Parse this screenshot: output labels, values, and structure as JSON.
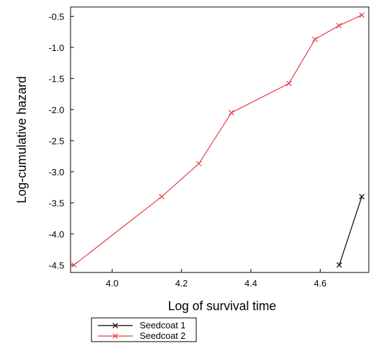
{
  "chart_data": {
    "type": "line",
    "title": "",
    "xlabel": "Log of survival time",
    "ylabel": "Log-cumulative hazard",
    "xlim": [
      3.88,
      4.74
    ],
    "ylim": [
      -4.62,
      -0.35
    ],
    "x_ticks": [
      4.0,
      4.2,
      4.4,
      4.6
    ],
    "x_tick_labels": [
      "4.0",
      "4.2",
      "4.4",
      "4.6"
    ],
    "y_ticks": [
      -0.5,
      -1.0,
      -1.5,
      -2.0,
      -2.5,
      -3.0,
      -3.5,
      -4.0,
      -4.5
    ],
    "y_tick_labels": [
      "-0.5",
      "-1.0",
      "-1.5",
      "-2.0",
      "-2.5",
      "-3.0",
      "-3.5",
      "-4.0",
      "-4.5"
    ],
    "grid": false,
    "legend_position": "bottom-left, below plot",
    "series": [
      {
        "name": "Seedcoat 1",
        "color": "#000000",
        "marker": "x",
        "x": [
          4.655,
          4.72
        ],
        "y": [
          -4.5,
          -3.4
        ]
      },
      {
        "name": "Seedcoat 2",
        "color": "#e8383d",
        "marker": "x",
        "x": [
          3.89,
          4.143,
          4.25,
          4.344,
          4.51,
          4.585,
          4.654,
          4.72
        ],
        "y": [
          -4.5,
          -3.4,
          -2.87,
          -2.05,
          -1.58,
          -0.87,
          -0.65,
          -0.48
        ]
      }
    ]
  }
}
